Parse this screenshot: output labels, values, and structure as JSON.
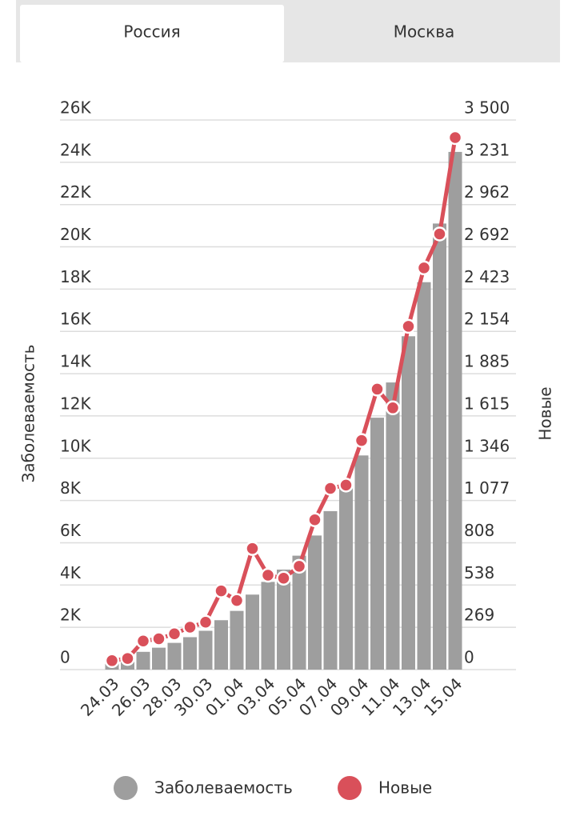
{
  "tabs": [
    "Россия",
    "Москва"
  ],
  "chart_data": {
    "type": "bar-line",
    "categories": [
      "24.03",
      null,
      "26.03",
      null,
      "28.03",
      null,
      "30.03",
      null,
      "01.04",
      null,
      "03.04",
      null,
      "05.04",
      null,
      "07.04",
      null,
      "09.04",
      null,
      "11.04",
      null,
      "13.04",
      null,
      "15.04"
    ],
    "y_label": "Заболеваемость",
    "y2_label": "Новые",
    "ylim": [
      0,
      26000
    ],
    "yticks": [
      0,
      {
        "value": 2000,
        "label": "2K"
      },
      {
        "value": 4000,
        "label": "4K"
      },
      {
        "value": 6000,
        "label": "6K"
      },
      {
        "value": 8000,
        "label": "8K"
      },
      {
        "value": 10000,
        "label": "10K"
      },
      {
        "value": 12000,
        "label": "12K"
      },
      {
        "value": 14000,
        "label": "14K"
      },
      {
        "value": 16000,
        "label": "16K"
      },
      {
        "value": 18000,
        "label": "18K"
      },
      {
        "value": 20000,
        "label": "20K"
      },
      {
        "value": 22000,
        "label": "22K"
      },
      {
        "value": 24000,
        "label": "24K"
      },
      {
        "value": 26000,
        "label": "26K"
      }
    ],
    "y2lim": [
      0,
      3500
    ],
    "y2ticks": [
      0,
      269,
      538,
      808,
      {
        "value": 1077,
        "label": "1 077"
      },
      {
        "value": 1346,
        "label": "1 346"
      },
      {
        "value": 1615,
        "label": "1 615"
      },
      {
        "value": 1885,
        "label": "1 885"
      },
      {
        "value": 2154,
        "label": "2 154"
      },
      {
        "value": 2423,
        "label": "2 423"
      },
      {
        "value": 2692,
        "label": "2 692"
      },
      {
        "value": 2962,
        "label": "2 962"
      },
      {
        "value": 3231,
        "label": "3 231"
      },
      {
        "value": 3500,
        "label": "3 500"
      }
    ],
    "grid": true,
    "series": [
      {
        "name": "Заболеваемость",
        "type": "bar",
        "color": "#9e9e9e",
        "values": [
          495,
          658,
          840,
          1036,
          1264,
          1534,
          1836,
          2337,
          2777,
          3548,
          4149,
          4731,
          5389,
          6343,
          7497,
          8672,
          10131,
          11917,
          13584,
          15770,
          18328,
          21102,
          24490
        ]
      },
      {
        "name": "Новые",
        "type": "line",
        "axis": "y2",
        "color": "#d9505a",
        "values": [
          57,
          71,
          182,
          196,
          228,
          270,
          302,
          501,
          440,
          771,
          601,
          582,
          658,
          954,
          1154,
          1175,
          1459,
          1786,
          1667,
          2186,
          2558,
          2774,
          3388
        ]
      }
    ]
  }
}
